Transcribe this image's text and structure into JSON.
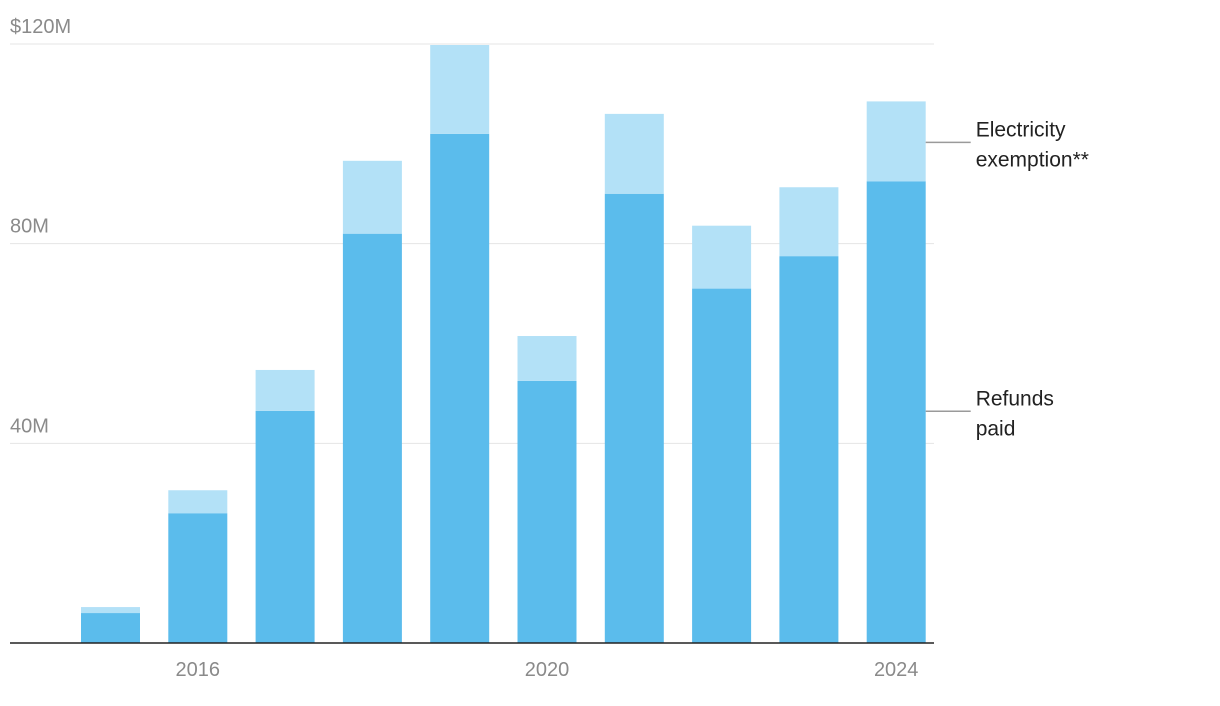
{
  "chart_data": {
    "type": "bar",
    "stacked": true,
    "categories": [
      "2015",
      "2016",
      "2017",
      "2018",
      "2019",
      "2020",
      "2021",
      "2022",
      "2023",
      "2024"
    ],
    "x_tick_labels": [
      "",
      "2016",
      "",
      "",
      "",
      "2020",
      "",
      "",
      "",
      "2024"
    ],
    "series": [
      {
        "name": "Refunds paid",
        "color": "#5bbcec",
        "values": [
          6,
          26,
          46.5,
          82,
          102,
          52.5,
          90,
          71,
          77.5,
          92.5
        ]
      },
      {
        "name": "Electricity exemption**",
        "color": "#b3e1f7",
        "values": [
          1.2,
          4.6,
          8.2,
          14.6,
          17.8,
          9,
          16,
          12.6,
          13.8,
          16
        ]
      }
    ],
    "y_ticks": [
      {
        "value": 40,
        "label": "40M"
      },
      {
        "value": 80,
        "label": "80M"
      },
      {
        "value": 120,
        "label": "$120M"
      }
    ],
    "ylim": [
      0,
      120
    ],
    "grid": true,
    "legend_placement": "right",
    "legend_labels": [
      {
        "series": 1,
        "lines": [
          "Electricity",
          "exemption**"
        ]
      },
      {
        "series": 0,
        "lines": [
          "Refunds",
          "paid"
        ]
      }
    ]
  }
}
